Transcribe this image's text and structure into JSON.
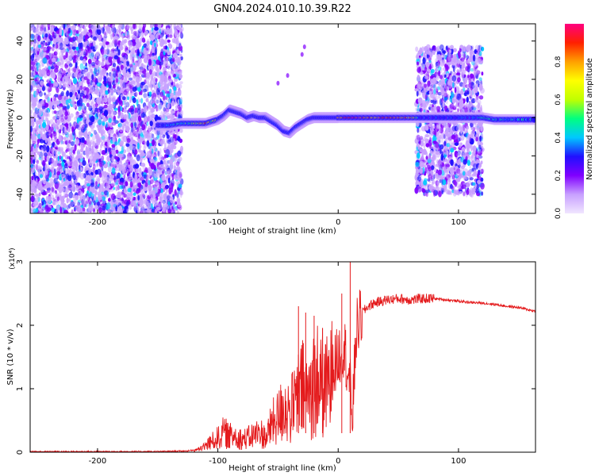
{
  "title": "GN04.2024.010.10.39.R22",
  "chart_data": [
    {
      "type": "heatmap",
      "xlabel": "Height of straight line (km)",
      "ylabel": "Frequency (Hz)",
      "xlim": [
        -256,
        164
      ],
      "ylim": [
        -50,
        49
      ],
      "xticks": [
        -200,
        -100,
        0,
        100
      ],
      "yticks": [
        40,
        20,
        0,
        -20,
        -40
      ],
      "xtick_labels": [
        "-200",
        "-100",
        "0",
        "100"
      ],
      "ytick_labels": [
        "40",
        "20",
        "0",
        "-20",
        "-40"
      ],
      "colorbar": {
        "label": "Normalized spectral amplitude",
        "range": [
          0,
          1
        ],
        "ticks": [
          0.0,
          0.2,
          0.4,
          0.6,
          0.8
        ],
        "tick_labels": [
          "0.0",
          "0.2",
          "0.4",
          "0.6",
          "0.8"
        ],
        "colormap": [
          "#f0e6ff",
          "#c8a0ff",
          "#8000ff",
          "#2010ff",
          "#00c8ff",
          "#00ff80",
          "#c0ff00",
          "#ffff00",
          "#ffa000",
          "#ff2000",
          "#ff0080"
        ]
      },
      "regions": [
        {
          "name": "broadband noise",
          "x_range": [
            -256,
            -130
          ],
          "f_range": [
            -50,
            49
          ]
        },
        {
          "name": "broadband noise",
          "x_range": [
            65,
            120
          ],
          "f_range": [
            -40,
            37
          ]
        }
      ],
      "ridge": {
        "x": [
          -150,
          -140,
          -130,
          -120,
          -110,
          -100,
          -95,
          -90,
          -85,
          -80,
          -75,
          -70,
          -65,
          -60,
          -55,
          -50,
          -45,
          -40,
          -35,
          -30,
          -25,
          -20,
          -15,
          -10,
          -5,
          0,
          10,
          20,
          30,
          40,
          50,
          60,
          70,
          80,
          90,
          100,
          110,
          120,
          130,
          140,
          150,
          164
        ],
        "freq": [
          -4,
          -4,
          -3,
          -3,
          -3,
          -1,
          1,
          4,
          3,
          2,
          0,
          1,
          0,
          0,
          -2,
          -4,
          -7,
          -8,
          -5,
          -3,
          -1,
          0,
          0,
          0,
          0,
          0,
          0,
          0,
          0,
          0,
          0,
          0,
          0,
          0,
          0,
          0,
          0,
          0,
          -1,
          -1,
          -1,
          -1
        ],
        "amplitude": [
          0.2,
          0.3,
          0.4,
          0.6,
          0.8,
          0.5,
          0.6,
          0.5,
          0.6,
          0.7,
          0.8,
          0.6,
          0.8,
          0.7,
          0.5,
          0.3,
          0.3,
          0.3,
          0.5,
          0.6,
          0.8,
          0.9,
          0.9,
          0.8,
          0.9,
          0.9,
          0.9,
          0.9,
          0.85,
          0.85,
          0.85,
          0.85,
          0.3,
          0.3,
          0.3,
          0.3,
          0.3,
          0.4,
          0.4,
          0.4,
          0.4,
          0.4
        ]
      },
      "scattered_points": [
        {
          "x": -50,
          "freq": 18
        },
        {
          "x": -42,
          "freq": 22
        },
        {
          "x": -30,
          "freq": 33
        },
        {
          "x": -28,
          "freq": 37
        }
      ]
    },
    {
      "type": "line",
      "xlabel": "Height of straight line (km)",
      "ylabel": "SNR (10 * v/v)",
      "y_multiplier": "(x10⁴)",
      "xlim": [
        -256,
        164
      ],
      "ylim": [
        0,
        3
      ],
      "xticks": [
        -200,
        -100,
        0,
        100
      ],
      "yticks": [
        0,
        1,
        2,
        3
      ],
      "xtick_labels": [
        "-200",
        "-100",
        "0",
        "100"
      ],
      "ytick_labels": [
        "0",
        "1",
        "2",
        "3"
      ],
      "series": [
        {
          "color": "#e41a1c",
          "x": [
            -256,
            -200,
            -150,
            -125,
            -115,
            -110,
            -100,
            -95,
            -90,
            -85,
            -80,
            -75,
            -70,
            -65,
            -60,
            -55,
            -50,
            -45,
            -40,
            -35,
            -30,
            -25,
            -20,
            -15,
            -10,
            -5,
            0,
            5,
            10,
            12,
            15,
            20,
            25,
            30,
            40,
            50,
            60,
            70,
            80,
            90,
            100,
            110,
            120,
            130,
            140,
            150,
            164
          ],
          "y": [
            0.01,
            0.01,
            0.01,
            0.02,
            0.05,
            0.12,
            0.25,
            0.35,
            0.28,
            0.3,
            0.22,
            0.25,
            0.3,
            0.35,
            0.25,
            0.5,
            0.6,
            0.8,
            0.7,
            0.9,
            1.1,
            1.0,
            1.2,
            1.3,
            1.1,
            1.3,
            1.5,
            1.7,
            1.0,
            0.6,
            1.9,
            2.2,
            2.3,
            2.35,
            2.4,
            2.42,
            2.4,
            2.42,
            2.42,
            2.4,
            2.38,
            2.36,
            2.35,
            2.33,
            2.3,
            2.28,
            2.22
          ],
          "spikes": [
            {
              "x": -33,
              "y": 2.3
            },
            {
              "x": -27,
              "y": 2.2
            },
            {
              "x": -20,
              "y": 2.15
            },
            {
              "x": -13,
              "y": 1.95
            },
            {
              "x": 10,
              "y": 3.0
            },
            {
              "x": 3,
              "y": 2.5
            }
          ]
        }
      ]
    }
  ]
}
